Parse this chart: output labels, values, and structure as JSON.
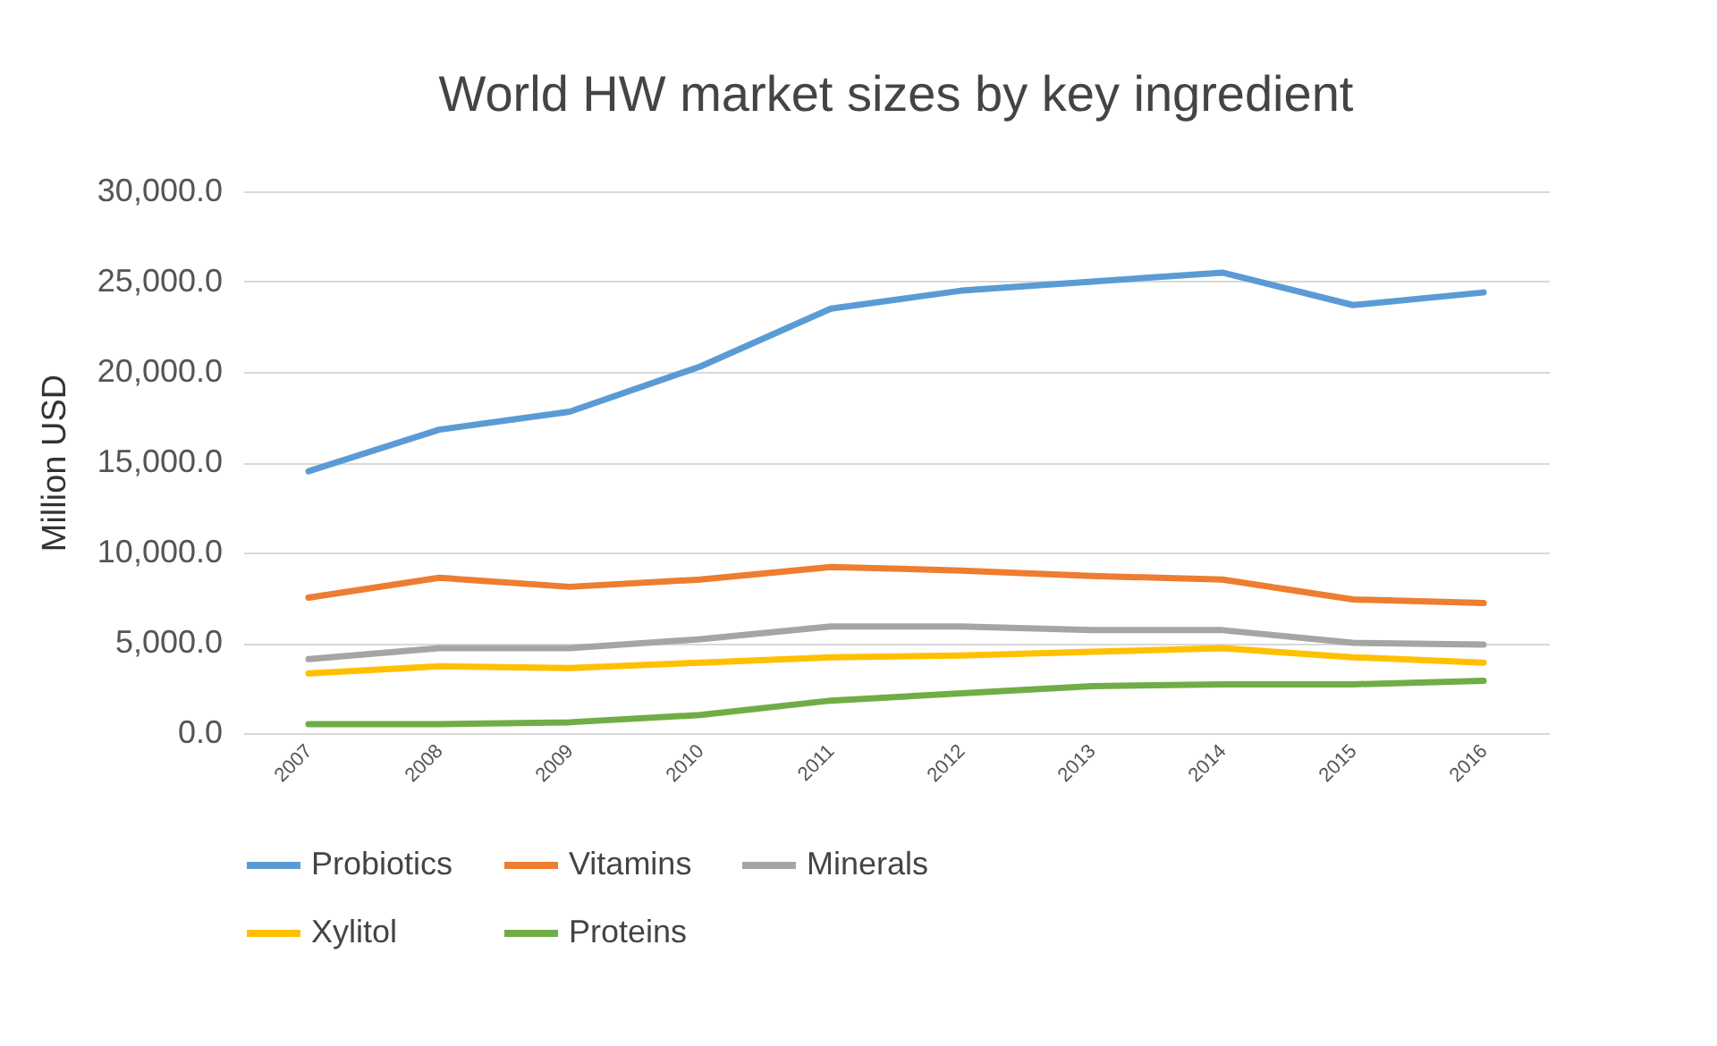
{
  "chart_data": {
    "type": "line",
    "title": "World HW market sizes by key ingredient",
    "ylabel": "Million USD",
    "categories": [
      "2007",
      "2008",
      "2009",
      "2010",
      "2011",
      "2012",
      "2013",
      "2014",
      "2015",
      "2016"
    ],
    "series": [
      {
        "name": "Probiotics",
        "color": "#5b9bd5",
        "values": [
          14500,
          16800,
          17800,
          20300,
          23500,
          24500,
          25000,
          25500,
          23700,
          24400
        ]
      },
      {
        "name": "Vitamins",
        "color": "#ed7d31",
        "values": [
          7500,
          8600,
          8100,
          8500,
          9200,
          9000,
          8700,
          8500,
          7400,
          7200
        ]
      },
      {
        "name": "Minerals",
        "color": "#a5a5a5",
        "values": [
          4100,
          4700,
          4700,
          5200,
          5900,
          5900,
          5700,
          5700,
          5000,
          4900
        ]
      },
      {
        "name": "Xylitol",
        "color": "#ffc000",
        "values": [
          3300,
          3700,
          3600,
          3900,
          4200,
          4300,
          4500,
          4700,
          4200,
          3900
        ]
      },
      {
        "name": "Proteins",
        "color": "#70ad47",
        "values": [
          500,
          500,
          600,
          1000,
          1800,
          2200,
          2600,
          2700,
          2700,
          2900
        ]
      }
    ],
    "ylim": [
      0,
      30000
    ],
    "yticks": [
      {
        "value": 0,
        "label": "0.0"
      },
      {
        "value": 5000,
        "label": "5,000.0"
      },
      {
        "value": 10000,
        "label": "10,000.0"
      },
      {
        "value": 15000,
        "label": "15,000.0"
      },
      {
        "value": 20000,
        "label": "20,000.0"
      },
      {
        "value": 25000,
        "label": "25,000.0"
      },
      {
        "value": 30000,
        "label": "30,000.0"
      }
    ],
    "grid": "y",
    "legend": "bottom"
  }
}
